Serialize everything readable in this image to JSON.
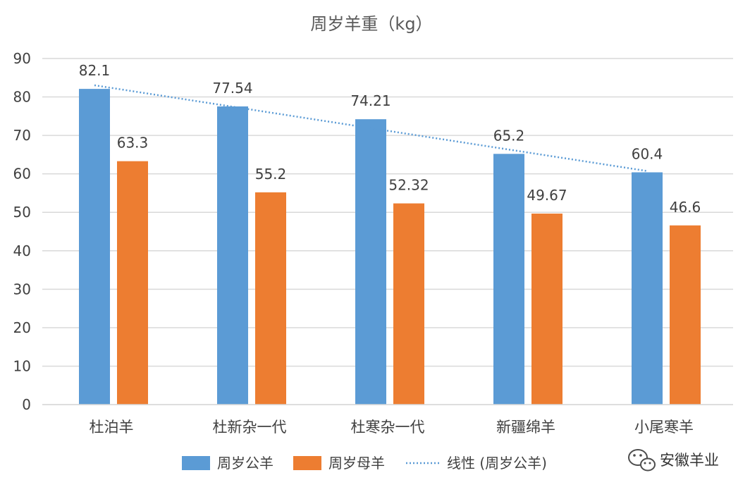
{
  "watermark": {
    "text": "安徽羊业",
    "icon": "wechat-icon"
  },
  "colors": {
    "series_ram": "#5B9BD5",
    "series_ewe": "#ED7D31",
    "trendline": "#5B9BD5",
    "grid": "#D9D9D9",
    "text": "#404040",
    "title": "#595959"
  },
  "chart_data": {
    "type": "bar",
    "title": "周岁羊重（kg）",
    "xlabel": "",
    "ylabel": "",
    "ylim": [
      0,
      90
    ],
    "yticks": [
      "0",
      "10",
      "20",
      "30",
      "40",
      "50",
      "60",
      "70",
      "80",
      "90"
    ],
    "grid": true,
    "legend_position": "bottom",
    "categories": [
      "杜泊羊",
      "杜新杂一代",
      "杜寒杂一代",
      "新疆绵羊",
      "小尾寒羊"
    ],
    "series": [
      {
        "name": "周岁公羊",
        "values": [
          82.1,
          77.54,
          74.21,
          65.2,
          60.4
        ],
        "labels": [
          "82.1",
          "77.54",
          "74.21",
          "65.2",
          "60.4"
        ]
      },
      {
        "name": "周岁母羊",
        "values": [
          63.3,
          55.2,
          52.32,
          49.67,
          46.6
        ],
        "labels": [
          "63.3",
          "55.2",
          "52.32",
          "49.67",
          "46.6"
        ]
      }
    ],
    "trendline": {
      "name": "线性 (周岁公羊)",
      "type": "linear",
      "series": "周岁公羊"
    }
  }
}
